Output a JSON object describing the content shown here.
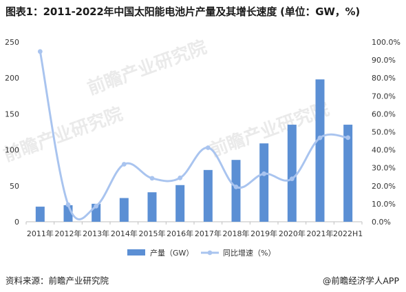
{
  "title": "图表1：2011-2022年中国太阳能电池片产量及其增长速度 (单位：GW，%)",
  "source": "资料来源：前瞻产业研究院",
  "credit": "@前瞻经济学人APP",
  "watermark": "前瞻产业研究院",
  "colors": {
    "bar": "#5b8fd4",
    "line": "#a9c4ef",
    "axis": "#bfbfbf",
    "text": "#333333"
  },
  "chart_data": {
    "type": "bar",
    "categories": [
      "2011年",
      "2012年",
      "2013年",
      "2014年",
      "2015年",
      "2016年",
      "2017年",
      "2018年",
      "2019年",
      "2020年",
      "2021年",
      "2022H1"
    ],
    "series": [
      {
        "name": "产量（GW）",
        "type": "bar",
        "axis": "left",
        "values": [
          21,
          23,
          25,
          33,
          41,
          51,
          72,
          86,
          109,
          135,
          198,
          135
        ]
      },
      {
        "name": "同比增速（%）",
        "type": "line",
        "axis": "right",
        "smooth": true,
        "values": [
          94.7,
          9.5,
          8.7,
          32.0,
          24.2,
          24.4,
          41.2,
          19.4,
          26.7,
          23.9,
          46.7,
          46.8
        ]
      }
    ],
    "yleft": {
      "ylim": [
        0,
        250
      ],
      "ticks": [
        0,
        50,
        100,
        150,
        200,
        250
      ]
    },
    "yright": {
      "ylim": [
        0,
        100
      ],
      "ticks": [
        "0.0%",
        "10.0%",
        "20.0%",
        "30.0%",
        "40.0%",
        "50.0%",
        "60.0%",
        "70.0%",
        "80.0%",
        "90.0%",
        "100.0%"
      ]
    },
    "legend_position": "bottom-center",
    "grid": false
  }
}
